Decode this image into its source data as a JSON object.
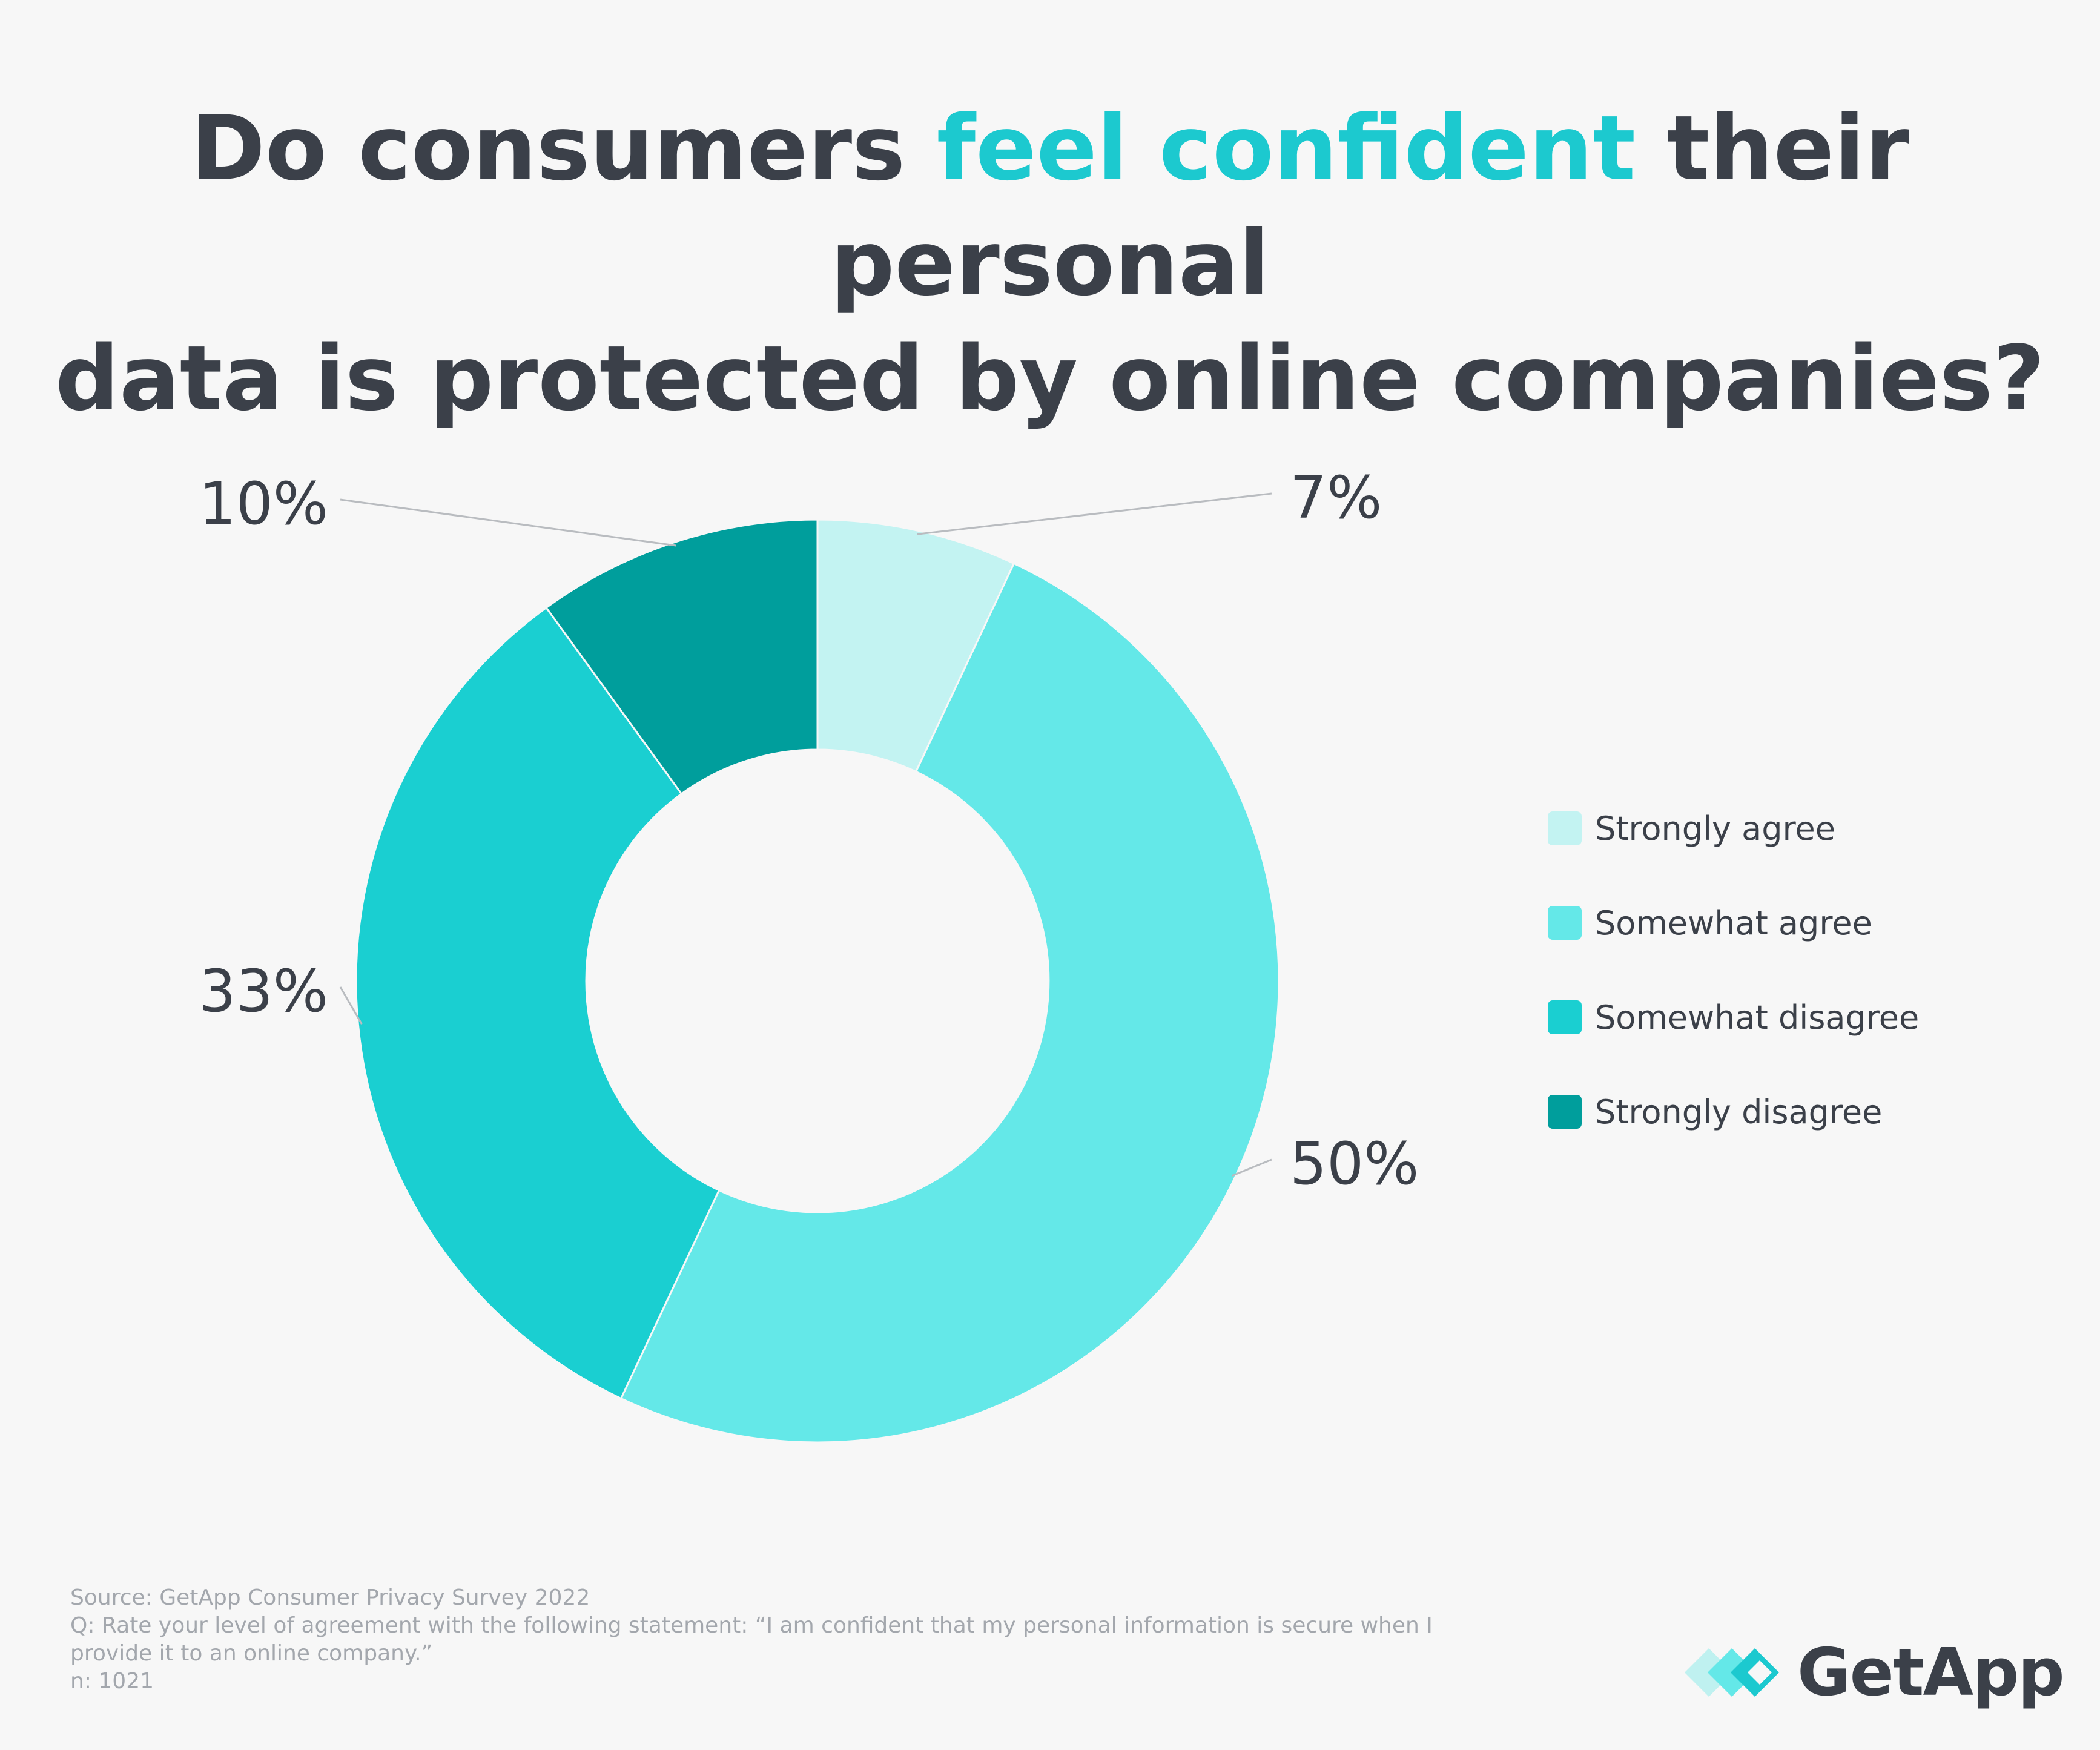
{
  "title": {
    "pre": "Do consumers ",
    "highlight": "feel confident",
    "post_line1": " their personal",
    "line2": "data is protected by online companies?"
  },
  "chart_data": {
    "type": "pie",
    "variant": "donut",
    "categories": [
      "Strongly agree",
      "Somewhat agree",
      "Somewhat disagree",
      "Strongly disagree"
    ],
    "values": [
      7,
      50,
      33,
      10
    ],
    "labels": [
      "7%",
      "50%",
      "33%",
      "10%"
    ],
    "colors": [
      "#c3f3f2",
      "#64e8e8",
      "#1acfd1",
      "#009e9c"
    ],
    "legend_position": "right"
  },
  "legend": {
    "items": [
      {
        "label": "Strongly agree",
        "color": "#c3f3f2"
      },
      {
        "label": "Somewhat agree",
        "color": "#64e8e8"
      },
      {
        "label": "Somewhat disagree",
        "color": "#1acfd1"
      },
      {
        "label": "Strongly disagree",
        "color": "#009e9c"
      }
    ]
  },
  "footer": {
    "source": "Source: GetApp Consumer Privacy Survey 2022",
    "question_line1": "Q: Rate your level of agreement with the following statement: “I am confident that my personal information is secure when I",
    "question_line2": "provide it to an online company.”",
    "n": "n: 1021"
  },
  "brand": {
    "name": "GetApp",
    "accent": "#1cc9cf",
    "text_color": "#3b4049"
  }
}
